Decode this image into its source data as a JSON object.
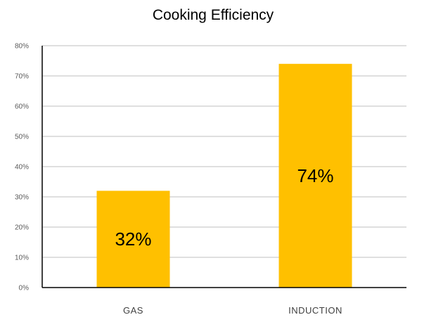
{
  "chart_data": {
    "type": "bar",
    "title": "Cooking Efficiency",
    "categories": [
      "GAS",
      "INDUCTION"
    ],
    "values": [
      32,
      74
    ],
    "data_labels": [
      "32%",
      "74%"
    ],
    "ylim": [
      0,
      80
    ],
    "yticks": [
      0,
      10,
      20,
      30,
      40,
      50,
      60,
      70,
      80
    ],
    "ytick_labels": [
      "0%",
      "10%",
      "20%",
      "30%",
      "40%",
      "50%",
      "60%",
      "70%",
      "80%"
    ],
    "xlabel": "",
    "ylabel": "",
    "grid": true,
    "bar_color": "#FFC000",
    "grid_color": "#BFBFBF",
    "axis_color": "#000000"
  }
}
